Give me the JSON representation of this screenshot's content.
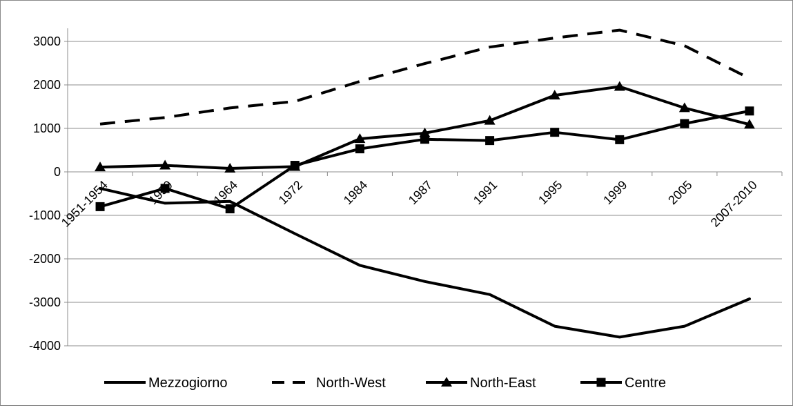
{
  "chart_data": {
    "type": "line",
    "title": "",
    "xlabel": "",
    "ylabel": "",
    "categories": [
      "1951-1954",
      "1959",
      "1964",
      "1972",
      "1984",
      "1987",
      "1991",
      "1995",
      "1999",
      "2005",
      "2007-2010"
    ],
    "ylim": [
      -4000,
      3000
    ],
    "yticks": [
      3000,
      2000,
      1000,
      0,
      -1000,
      -2000,
      -3000,
      -4000
    ],
    "grid": true,
    "legend_position": "bottom",
    "series": [
      {
        "name": "Mezzogiorno",
        "style": "solid",
        "marker": "none",
        "color": "#000000",
        "values": [
          -380,
          -720,
          -680,
          -1420,
          -2150,
          -2520,
          -2820,
          -3550,
          -3800,
          -3550,
          -2920
        ]
      },
      {
        "name": "North-West",
        "style": "dashed",
        "marker": "none",
        "color": "#000000",
        "values": [
          1100,
          1250,
          1470,
          1620,
          2080,
          2490,
          2870,
          3080,
          3260,
          2900,
          2150
        ]
      },
      {
        "name": "North-East",
        "style": "solid",
        "marker": "triangle",
        "color": "#000000",
        "values": [
          110,
          150,
          80,
          120,
          760,
          890,
          1180,
          1760,
          1960,
          1470,
          1090
        ]
      },
      {
        "name": "Centre",
        "style": "solid",
        "marker": "square",
        "color": "#000000",
        "values": [
          -800,
          -380,
          -850,
          150,
          530,
          750,
          720,
          910,
          740,
          1110,
          1400
        ]
      }
    ]
  }
}
